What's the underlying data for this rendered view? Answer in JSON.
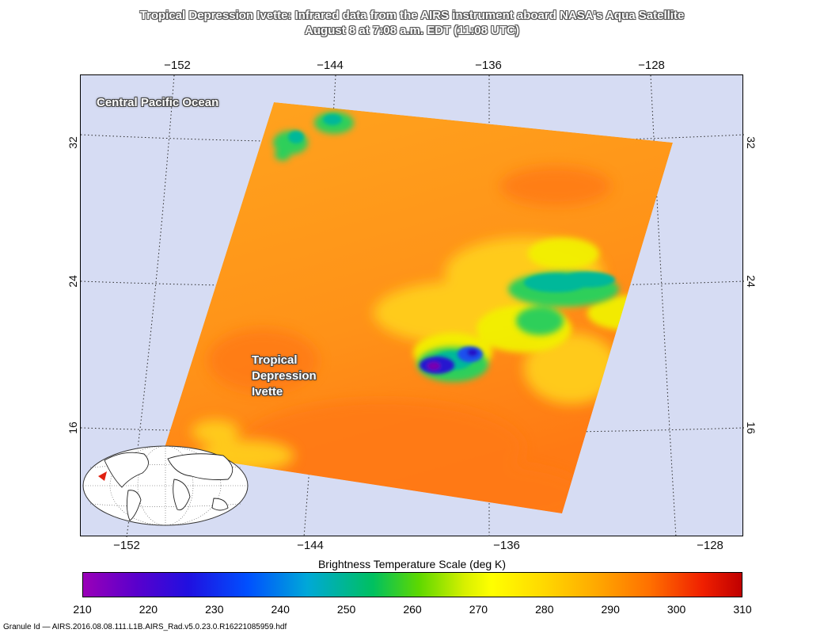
{
  "title": {
    "line1": "Tropical Depression Ivette: Infrared data from the AIRS instrument aboard NASA's Aqua Satellite",
    "line2": "August 8 at 7:08 a.m. EDT (11:08 UTC)"
  },
  "map": {
    "lon_ticks": [
      "−152",
      "−144",
      "−136",
      "−128"
    ],
    "lat_ticks": [
      "32",
      "24",
      "16"
    ],
    "labels": {
      "ocean": "Central Pacific Ocean",
      "storm_line1": "Tropical",
      "storm_line2": "Depression",
      "storm_line3": "Ivette"
    },
    "colors": {
      "ocean_background": "#d6dcf3",
      "warm_cloud_free": "#ff9a1a",
      "cold_cloud_top": "#3a10c8"
    }
  },
  "colorbar": {
    "title": "Brightness Temperature Scale (deg K)",
    "min": 210,
    "max": 310,
    "ticks": [
      "210",
      "220",
      "230",
      "240",
      "250",
      "260",
      "270",
      "280",
      "290",
      "300",
      "310"
    ]
  },
  "granule": "Granule Id — AIRS.2016.08.08.111.L1B.AIRS_Rad.v5.0.23.0.R16221085959.hdf"
}
